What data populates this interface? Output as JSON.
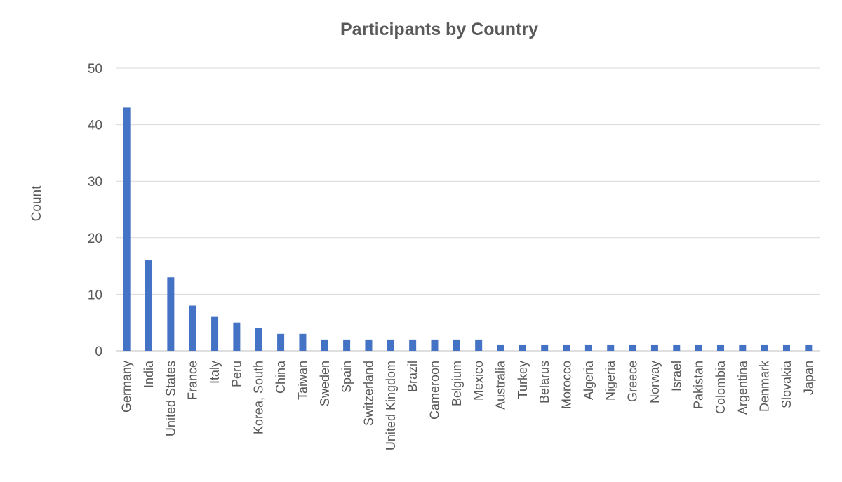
{
  "chart_data": {
    "type": "bar",
    "title": "Participants by Country",
    "xlabel": "",
    "ylabel": "Count",
    "ylim": [
      0,
      50
    ],
    "yticks": [
      0,
      10,
      20,
      30,
      40,
      50
    ],
    "grid": true,
    "legend": "none",
    "bar_color": "#4472c4",
    "categories": [
      "Germany",
      "India",
      "United States",
      "France",
      "Italy",
      "Peru",
      "Korea, South",
      "China",
      "Taiwan",
      "Sweden",
      "Spain",
      "Switzerland",
      "United Kingdom",
      "Brazil",
      "Cameroon",
      "Belgium",
      "Mexico",
      "Australia",
      "Turkey",
      "Belarus",
      "Morocco",
      "Algeria",
      "Nigeria",
      "Greece",
      "Norway",
      "Israel",
      "Pakistan",
      "Colombia",
      "Argentina",
      "Denmark",
      "Slovakia",
      "Japan"
    ],
    "values": [
      43,
      16,
      13,
      8,
      6,
      5,
      4,
      3,
      3,
      2,
      2,
      2,
      2,
      2,
      2,
      2,
      2,
      1,
      1,
      1,
      1,
      1,
      1,
      1,
      1,
      1,
      1,
      1,
      1,
      1,
      1,
      1
    ]
  }
}
